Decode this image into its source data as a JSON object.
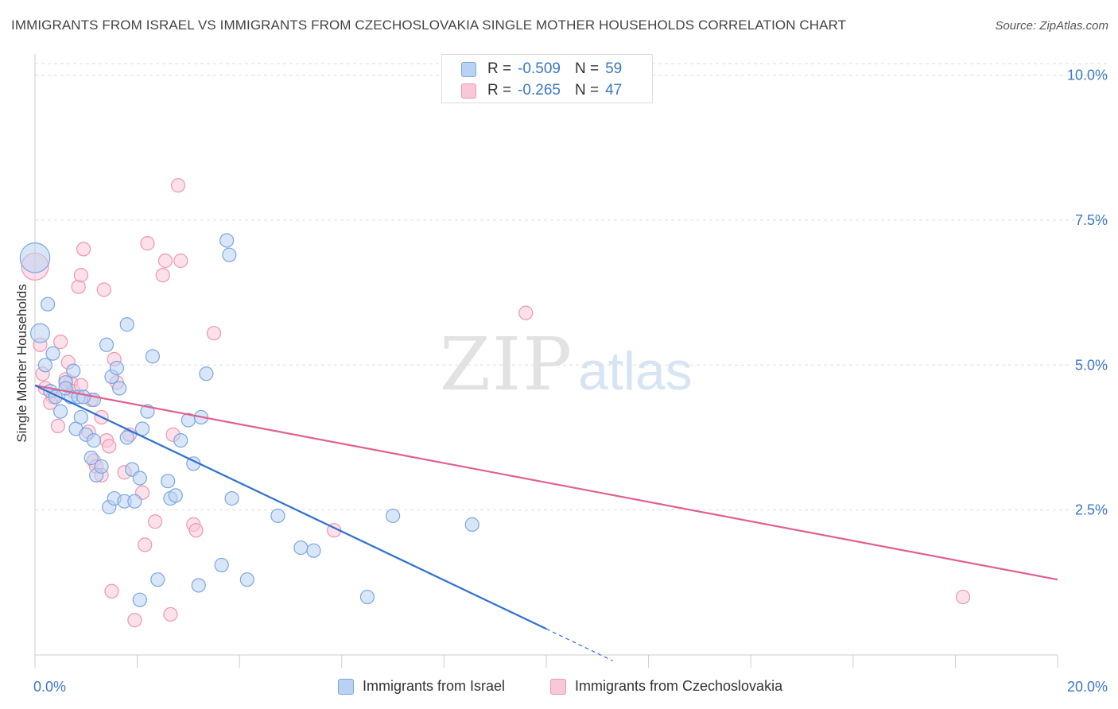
{
  "header": {
    "title": "IMMIGRANTS FROM ISRAEL VS IMMIGRANTS FROM CZECHOSLOVAKIA SINGLE MOTHER HOUSEHOLDS CORRELATION CHART",
    "source": "Source: ZipAtlas.com"
  },
  "watermark": {
    "zip": "ZIP",
    "atlas": "atlas"
  },
  "legend": {
    "rows": [
      {
        "r_label": "R =",
        "r_value": "-0.509",
        "n_label": "N =",
        "n_value": "59"
      },
      {
        "r_label": "R =",
        "r_value": "-0.265",
        "n_label": "N =",
        "n_value": "47"
      }
    ]
  },
  "bottom_legend": {
    "israel": "Immigrants from Israel",
    "czech": "Immigrants from Czechoslovakia"
  },
  "colors": {
    "israel_fill": "#b9d1f2",
    "israel_stroke": "#7aa7e0",
    "israel_line": "#2f72d0",
    "czech_fill": "#f9c8d8",
    "czech_stroke": "#ee95b3",
    "czech_line": "#e0608e",
    "grid": "#dddddd",
    "axis_tick_text": "#3a78c7"
  },
  "chart_data": {
    "type": "scatter",
    "title": "IMMIGRANTS FROM ISRAEL VS IMMIGRANTS FROM CZECHOSLOVAKIA SINGLE MOTHER HOUSEHOLDS CORRELATION CHART",
    "xlabel": "",
    "ylabel": "Single Mother Households",
    "xlim": [
      0,
      20
    ],
    "ylim": [
      0,
      10.2
    ],
    "x_tick_labels": [
      "0.0%",
      "20.0%"
    ],
    "y_ticks": [
      2.5,
      5.0,
      7.5,
      10.0
    ],
    "y_tick_labels": [
      "2.5%",
      "5.0%",
      "7.5%",
      "10.0%"
    ],
    "grid": true,
    "legend_position": "top-center",
    "series": [
      {
        "name": "Immigrants from Israel",
        "points": [
          [
            0.0,
            6.85,
            2.2
          ],
          [
            0.1,
            5.55,
            1.4
          ],
          [
            0.25,
            6.05,
            1.0
          ],
          [
            0.35,
            5.2,
            1.0
          ],
          [
            0.2,
            5.0,
            1.0
          ],
          [
            0.3,
            4.55,
            1.0
          ],
          [
            0.4,
            4.45,
            1.0
          ],
          [
            0.5,
            4.2,
            1.0
          ],
          [
            0.6,
            4.7,
            1.0
          ],
          [
            0.7,
            4.45,
            1.0
          ],
          [
            0.85,
            4.45,
            1.0
          ],
          [
            0.75,
            4.9,
            1.0
          ],
          [
            1.15,
            4.4,
            1.0
          ],
          [
            0.8,
            3.9,
            1.0
          ],
          [
            0.9,
            4.1,
            1.0
          ],
          [
            1.0,
            3.8,
            1.0
          ],
          [
            1.1,
            3.4,
            1.0
          ],
          [
            1.15,
            3.7,
            1.0
          ],
          [
            1.2,
            3.1,
            1.0
          ],
          [
            1.3,
            3.25,
            1.0
          ],
          [
            1.4,
            5.35,
            1.0
          ],
          [
            1.5,
            4.8,
            1.0
          ],
          [
            1.6,
            4.95,
            1.0
          ],
          [
            1.65,
            4.6,
            1.0
          ],
          [
            1.8,
            5.7,
            1.0
          ],
          [
            1.45,
            2.55,
            1.0
          ],
          [
            1.55,
            2.7,
            1.0
          ],
          [
            1.75,
            2.65,
            1.0
          ],
          [
            1.95,
            2.65,
            1.0
          ],
          [
            1.9,
            3.2,
            1.0
          ],
          [
            2.05,
            3.05,
            1.0
          ],
          [
            2.2,
            4.2,
            1.0
          ],
          [
            2.3,
            5.15,
            1.0
          ],
          [
            2.1,
            3.9,
            1.0
          ],
          [
            1.8,
            3.75,
            1.0
          ],
          [
            2.6,
            3.0,
            1.0
          ],
          [
            2.65,
            2.7,
            1.0
          ],
          [
            2.75,
            2.75,
            1.0
          ],
          [
            2.85,
            3.7,
            1.0
          ],
          [
            3.0,
            4.05,
            1.0
          ],
          [
            3.25,
            4.1,
            1.0
          ],
          [
            3.1,
            3.3,
            1.0
          ],
          [
            3.35,
            4.85,
            1.0
          ],
          [
            3.75,
            7.15,
            1.0
          ],
          [
            3.8,
            6.9,
            1.0
          ],
          [
            3.85,
            2.7,
            1.0
          ],
          [
            4.75,
            2.4,
            1.0
          ],
          [
            5.2,
            1.85,
            1.0
          ],
          [
            5.45,
            1.8,
            1.0
          ],
          [
            7.0,
            2.4,
            1.0
          ],
          [
            8.55,
            2.25,
            1.0
          ],
          [
            6.5,
            1.0,
            1.0
          ],
          [
            3.65,
            1.55,
            1.0
          ],
          [
            4.15,
            1.3,
            1.0
          ],
          [
            2.4,
            1.3,
            1.0
          ],
          [
            3.2,
            1.2,
            1.0
          ],
          [
            2.05,
            0.95,
            1.0
          ],
          [
            0.6,
            4.6,
            1.0
          ],
          [
            0.95,
            4.45,
            1.0
          ]
        ]
      },
      {
        "name": "Immigrants from Czechoslovakia",
        "points": [
          [
            0.0,
            6.7,
            2.0
          ],
          [
            0.1,
            5.35,
            1.0
          ],
          [
            0.15,
            4.85,
            1.0
          ],
          [
            0.2,
            4.6,
            1.0
          ],
          [
            0.35,
            4.45,
            1.0
          ],
          [
            0.3,
            4.35,
            1.0
          ],
          [
            0.45,
            3.95,
            1.0
          ],
          [
            0.5,
            5.4,
            1.0
          ],
          [
            0.65,
            5.05,
            1.0
          ],
          [
            0.7,
            4.7,
            1.0
          ],
          [
            0.75,
            4.55,
            1.0
          ],
          [
            0.9,
            4.65,
            1.0
          ],
          [
            0.85,
            6.35,
            1.0
          ],
          [
            0.9,
            6.55,
            1.0
          ],
          [
            0.95,
            7.0,
            1.0
          ],
          [
            1.05,
            3.85,
            1.0
          ],
          [
            1.1,
            4.4,
            1.0
          ],
          [
            1.15,
            3.35,
            1.0
          ],
          [
            1.2,
            3.25,
            1.0
          ],
          [
            1.3,
            3.1,
            1.0
          ],
          [
            1.4,
            3.7,
            1.0
          ],
          [
            1.3,
            4.1,
            1.0
          ],
          [
            1.35,
            6.3,
            1.0
          ],
          [
            1.45,
            3.6,
            1.0
          ],
          [
            1.55,
            5.1,
            1.0
          ],
          [
            1.6,
            4.7,
            1.0
          ],
          [
            1.75,
            3.15,
            1.0
          ],
          [
            1.85,
            3.8,
            1.0
          ],
          [
            2.1,
            2.8,
            1.0
          ],
          [
            2.15,
            1.9,
            1.0
          ],
          [
            2.2,
            7.1,
            1.0
          ],
          [
            2.35,
            2.3,
            1.0
          ],
          [
            2.5,
            6.55,
            1.0
          ],
          [
            2.55,
            6.8,
            1.0
          ],
          [
            2.65,
            0.7,
            1.0
          ],
          [
            2.7,
            3.8,
            1.0
          ],
          [
            2.8,
            8.1,
            1.0
          ],
          [
            2.85,
            6.8,
            1.0
          ],
          [
            3.1,
            2.25,
            1.0
          ],
          [
            3.15,
            2.15,
            1.0
          ],
          [
            3.5,
            5.55,
            1.0
          ],
          [
            1.5,
            1.1,
            1.0
          ],
          [
            1.95,
            0.6,
            1.0
          ],
          [
            5.85,
            2.15,
            1.0
          ],
          [
            9.6,
            5.9,
            1.0
          ],
          [
            18.15,
            1.0,
            1.0
          ],
          [
            0.6,
            4.75,
            1.0
          ]
        ]
      }
    ],
    "trendlines": [
      {
        "series": "Immigrants from Israel",
        "x0": 0.0,
        "y0": 4.65,
        "x1": 10.0,
        "y1": 0.45,
        "dashed_to_x": 11.3,
        "dashed_to_y": -0.1
      },
      {
        "series": "Immigrants from Czechoslovakia",
        "x0": 0.0,
        "y0": 4.65,
        "x1": 20.0,
        "y1": 1.3
      }
    ]
  }
}
